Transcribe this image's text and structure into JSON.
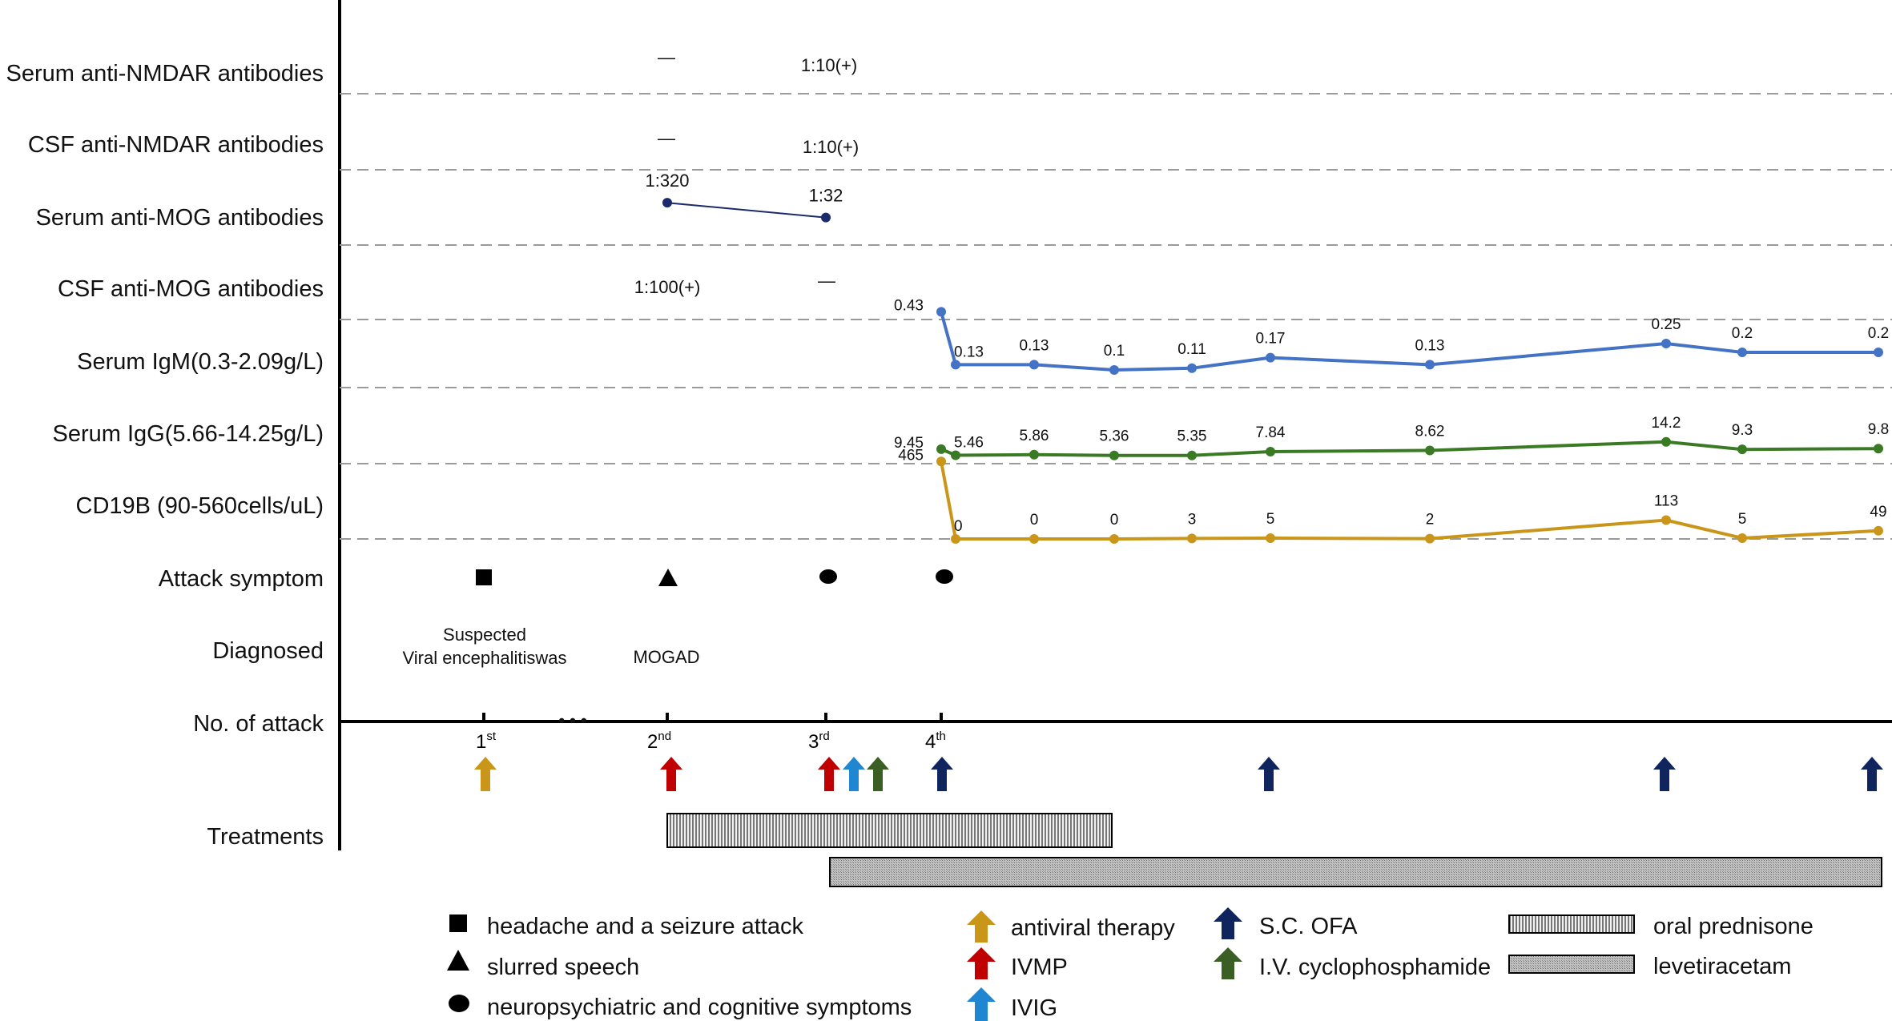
{
  "rows": {
    "serum_nmdar": "Serum anti-NMDAR antibodies",
    "csf_nmdar": "CSF anti-NMDAR antibodies",
    "serum_mog": "Serum anti-MOG antibodies",
    "csf_mog": "CSF anti-MOG antibodies",
    "igm": "Serum IgM(0.3-2.09g/L)",
    "igg": "Serum IgG(5.66-14.25g/L)",
    "cd19": "CD19B (90-560cells/uL)",
    "attack_symptom": "Attack symptom",
    "diagnosed": "Diagnosed",
    "no_of_attack": "No. of attack",
    "treatments": "Treatments"
  },
  "results": {
    "serum_nmdar_attack2": "—",
    "serum_nmdar_attack3": "1:10(+)",
    "csf_nmdar_attack2": "—",
    "csf_nmdar_attack3": "1:10(+)",
    "csf_mog_attack2": "1:100(+)",
    "csf_mog_attack3": "—"
  },
  "diagnoses": {
    "d1_line1": "Suspected",
    "d1_line2": "Viral encephalitiswas",
    "d2": "MOGAD"
  },
  "attacks": [
    {
      "num": "1",
      "sup": "st"
    },
    {
      "num": "2",
      "sup": "nd"
    },
    {
      "num": "3",
      "sup": "rd"
    },
    {
      "num": "4",
      "sup": "th"
    }
  ],
  "ellipsis": "• • •",
  "legend": {
    "headache": "headache and a seizure attack",
    "slurred": "slurred speech",
    "neuro": "neuropsychiatric and cognitive symptoms",
    "antiviral": "antiviral therapy",
    "ivmp": "IVMP",
    "ivig": "IVIG",
    "ofa": "S.C. OFA",
    "cyclo": "I.V. cyclophosphamide",
    "prednisone": "oral prednisone",
    "levetiracetam": "levetiracetam"
  },
  "colors": {
    "mog": "#1b2a6b",
    "igm": "#4472c4",
    "igg": "#3b7a25",
    "cd19": "#c9961a",
    "antiviral": "#c9961a",
    "ivmp": "#c00000",
    "ivig": "#1f87d2",
    "ofa": "#10245e",
    "cyclo": "#3a5e23"
  },
  "chart_data": {
    "type": "line",
    "title": "",
    "x_note": "timepoints ordered along the attack timeline (attacks 1st to 4th, then follow-up samples)",
    "series": [
      {
        "name": "Serum anti-MOG antibodies",
        "key": "mog",
        "points": [
          {
            "t": 2,
            "label": "1:320",
            "value": 320
          },
          {
            "t": 3,
            "label": "1:32",
            "value": 32
          }
        ]
      },
      {
        "name": "Serum IgM(0.3-2.09g/L)",
        "key": "igm",
        "ylim": [
          0,
          0.5
        ],
        "points": [
          {
            "t": 4,
            "value": 0.43
          },
          {
            "t": 4.1,
            "value": 0.13
          },
          {
            "t": 4.6,
            "value": 0.13
          },
          {
            "t": 5.1,
            "value": 0.1
          },
          {
            "t": 5.6,
            "value": 0.11
          },
          {
            "t": 6.1,
            "value": 0.17
          },
          {
            "t": 7.1,
            "value": 0.13
          },
          {
            "t": 8.6,
            "value": 0.25
          },
          {
            "t": 9.1,
            "value": 0.2
          },
          {
            "t": 9.9,
            "value": 0.2
          }
        ]
      },
      {
        "name": "Serum IgG(5.66-14.25g/L)",
        "key": "igg",
        "ylim": [
          0,
          60
        ],
        "points": [
          {
            "t": 4,
            "value": 9.45
          },
          {
            "t": 4.1,
            "value": 5.46
          },
          {
            "t": 4.6,
            "value": 5.86
          },
          {
            "t": 5.1,
            "value": 5.36
          },
          {
            "t": 5.6,
            "value": 5.35
          },
          {
            "t": 6.1,
            "value": 7.84
          },
          {
            "t": 7.1,
            "value": 8.62
          },
          {
            "t": 8.6,
            "value": 14.2
          },
          {
            "t": 9.1,
            "value": 9.3
          },
          {
            "t": 9.9,
            "value": 9.8
          }
        ]
      },
      {
        "name": "CD19B (90-560cells/uL)",
        "key": "cd19",
        "ylim": [
          0,
          750
        ],
        "points": [
          {
            "t": 4,
            "value": 465
          },
          {
            "t": 4.1,
            "value": 0
          },
          {
            "t": 4.6,
            "value": 0
          },
          {
            "t": 5.1,
            "value": 0
          },
          {
            "t": 5.6,
            "value": 3
          },
          {
            "t": 6.1,
            "value": 5
          },
          {
            "t": 7.1,
            "value": 2
          },
          {
            "t": 8.6,
            "value": 113
          },
          {
            "t": 9.1,
            "value": 5
          },
          {
            "t": 9.9,
            "value": 49
          }
        ]
      }
    ],
    "treatment_arrows": [
      {
        "t": 1,
        "type": "antiviral"
      },
      {
        "t": 2,
        "type": "ivmp"
      },
      {
        "t": 3,
        "type": "ivmp"
      },
      {
        "t": 3.15,
        "type": "ivig"
      },
      {
        "t": 3.3,
        "type": "cyclo"
      },
      {
        "t": 4,
        "type": "ofa"
      },
      {
        "t": 6,
        "type": "ofa"
      },
      {
        "t": 8.5,
        "type": "ofa"
      },
      {
        "t": 9.9,
        "type": "ofa"
      }
    ],
    "treatment_bars": [
      {
        "type": "prednisone",
        "start": 2,
        "end": 5
      },
      {
        "type": "levetiracetam",
        "start": 3,
        "end": 10
      }
    ],
    "symptoms": [
      {
        "attack": 1,
        "symptom": "headache"
      },
      {
        "attack": 2,
        "symptom": "slurred"
      },
      {
        "attack": 3,
        "symptom": "neuro"
      },
      {
        "attack": 4,
        "symptom": "neuro"
      }
    ]
  }
}
